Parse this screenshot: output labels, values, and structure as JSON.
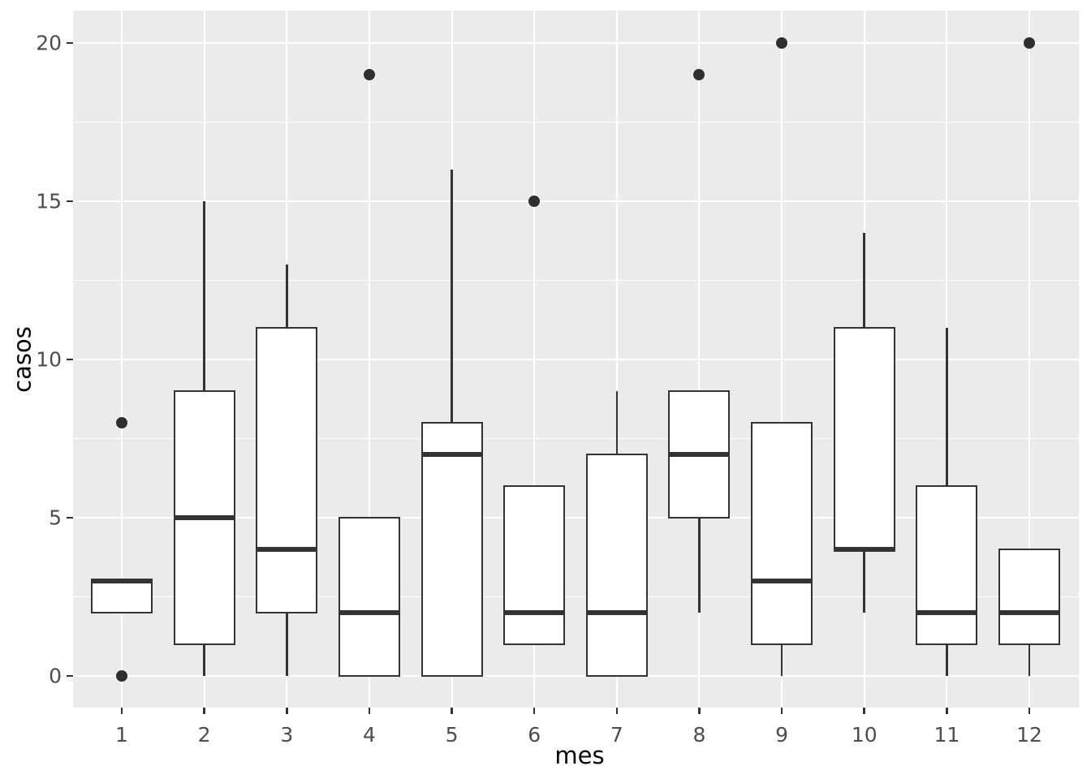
{
  "figure": {
    "kind": "ggplot-style boxplot figure"
  },
  "axes": {
    "x": {
      "label": "mes",
      "tick_labels": [
        "1",
        "2",
        "3",
        "4",
        "5",
        "6",
        "7",
        "8",
        "9",
        "10",
        "11",
        "12"
      ]
    },
    "y": {
      "label": "casos",
      "tick_labels": [
        "0",
        "5",
        "10",
        "15",
        "20"
      ]
    }
  },
  "chart_data": {
    "type": "boxplot",
    "title": "",
    "xlabel": "mes",
    "ylabel": "casos",
    "x_categories": [
      1,
      2,
      3,
      4,
      5,
      6,
      7,
      8,
      9,
      10,
      11,
      12
    ],
    "ylim": [
      0,
      20
    ],
    "y_major_ticks": [
      0,
      5,
      10,
      15,
      20
    ],
    "y_minor_gridlines": [
      2.5,
      7.5,
      12.5,
      17.5
    ],
    "grid": "major-and-minor-horizontal, major-vertical-at-each-month",
    "legend_position": "none",
    "boxes": [
      {
        "mes": 1,
        "whisker_low": 2,
        "q1": 2,
        "median": 3,
        "q3": 3,
        "whisker_high": 3,
        "outliers": [
          0,
          8
        ]
      },
      {
        "mes": 2,
        "whisker_low": 0,
        "q1": 1,
        "median": 5,
        "q3": 9,
        "whisker_high": 15,
        "outliers": []
      },
      {
        "mes": 3,
        "whisker_low": 0,
        "q1": 2,
        "median": 4,
        "q3": 11,
        "whisker_high": 13,
        "outliers": []
      },
      {
        "mes": 4,
        "whisker_low": 0,
        "q1": 0,
        "median": 2,
        "q3": 5,
        "whisker_high": 5,
        "outliers": [
          19
        ]
      },
      {
        "mes": 5,
        "whisker_low": 0,
        "q1": 0,
        "median": 7,
        "q3": 8,
        "whisker_high": 16,
        "outliers": []
      },
      {
        "mes": 6,
        "whisker_low": 1,
        "q1": 1,
        "median": 2,
        "q3": 6,
        "whisker_high": 6,
        "outliers": [
          15
        ]
      },
      {
        "mes": 7,
        "whisker_low": 0,
        "q1": 0,
        "median": 2,
        "q3": 7,
        "whisker_high": 9,
        "outliers": []
      },
      {
        "mes": 8,
        "whisker_low": 2,
        "q1": 5,
        "median": 7,
        "q3": 9,
        "whisker_high": 9,
        "outliers": [
          19
        ]
      },
      {
        "mes": 9,
        "whisker_low": 0,
        "q1": 1,
        "median": 3,
        "q3": 8,
        "whisker_high": 8,
        "outliers": [
          20
        ]
      },
      {
        "mes": 10,
        "whisker_low": 2,
        "q1": 4,
        "median": 4,
        "q3": 11,
        "whisker_high": 14,
        "outliers": []
      },
      {
        "mes": 11,
        "whisker_low": 0,
        "q1": 1,
        "median": 2,
        "q3": 6,
        "whisker_high": 11,
        "outliers": []
      },
      {
        "mes": 12,
        "whisker_low": 0,
        "q1": 1,
        "median": 2,
        "q3": 4,
        "whisker_high": 4,
        "outliers": [
          20
        ]
      }
    ],
    "colors": {
      "panel_background": "#EBEBEB",
      "gridline": "#FFFFFF",
      "box_fill": "#FFFFFF",
      "box_stroke": "#333333",
      "median": "#333333",
      "outlier": "#2E2E2E",
      "tick_mark": "#333333",
      "tick_label": "#4D4D4D",
      "axis_title": "#000000",
      "page_background": "#FFFFFF"
    }
  }
}
